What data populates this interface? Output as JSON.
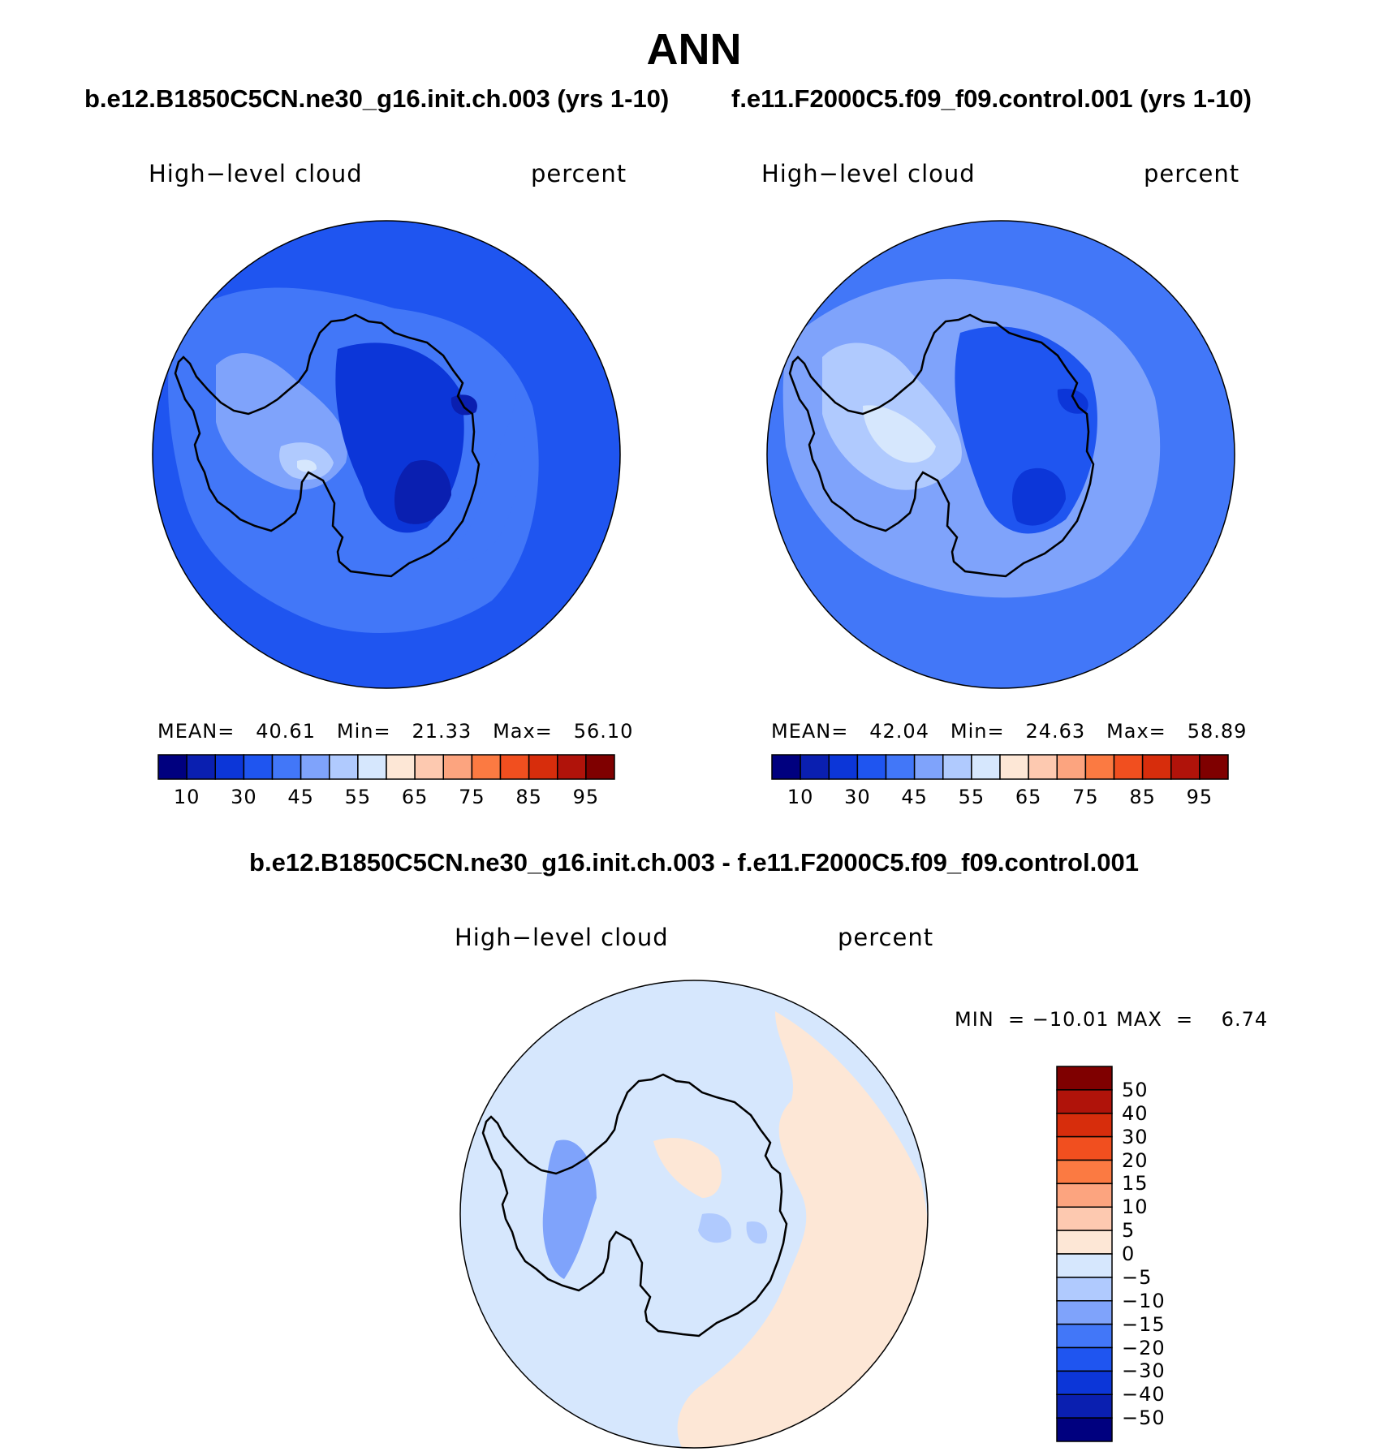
{
  "title": "ANN",
  "panels": [
    {
      "case_title": "b.e12.B1850C5CN.ne30_g16.init.ch.003 (yrs 1-10)",
      "variable_label": "High−level cloud",
      "units": "percent",
      "stats": {
        "mean_label": "MEAN=",
        "mean": "40.61",
        "min_label": "Min=",
        "min": "21.33",
        "max_label": "Max=",
        "max": "56.10"
      }
    },
    {
      "case_title": "f.e11.F2000C5.f09_f09.control.001 (yrs 1-10)",
      "variable_label": "High−level cloud",
      "units": "percent",
      "stats": {
        "mean_label": "MEAN=",
        "mean": "42.04",
        "min_label": "Min=",
        "min": "24.63",
        "max_label": "Max=",
        "max": "58.89"
      }
    }
  ],
  "abs_colorbar": {
    "colors": [
      "#00007f",
      "#0a1fb0",
      "#0c36d8",
      "#1f55f0",
      "#4277f8",
      "#7fa3fb",
      "#b0cafe",
      "#d6e7fd",
      "#fde7d6",
      "#fdc9b0",
      "#fca47f",
      "#fb7a42",
      "#f14f1f",
      "#d72d0c",
      "#b0130a",
      "#7f0000"
    ],
    "tick_labels": [
      "10",
      "30",
      "45",
      "55",
      "65",
      "75",
      "85",
      "95"
    ]
  },
  "difference": {
    "title": "b.e12.B1850C5CN.ne30_g16.init.ch.003 - f.e11.F2000C5.f09_f09.control.001",
    "variable_label": "High−level cloud",
    "units": "percent",
    "stats": {
      "min_label": "MIN  =",
      "min": "−10.01",
      "max_label": "MAX  =",
      "max": "6.74"
    },
    "colorbar": {
      "colors": [
        "#7f0000",
        "#b0130a",
        "#d72d0c",
        "#f14f1f",
        "#fb7a42",
        "#fca47f",
        "#fdc9b0",
        "#fde7d6",
        "#d6e7fd",
        "#b0cafe",
        "#7fa3fb",
        "#4277f8",
        "#1f55f0",
        "#0c36d8",
        "#0a1fb0",
        "#00007f"
      ],
      "tick_labels": [
        "50",
        "40",
        "30",
        "20",
        "15",
        "10",
        "5",
        "0",
        "−5",
        "−10",
        "−15",
        "−20",
        "−30",
        "−40",
        "−50"
      ]
    }
  }
}
